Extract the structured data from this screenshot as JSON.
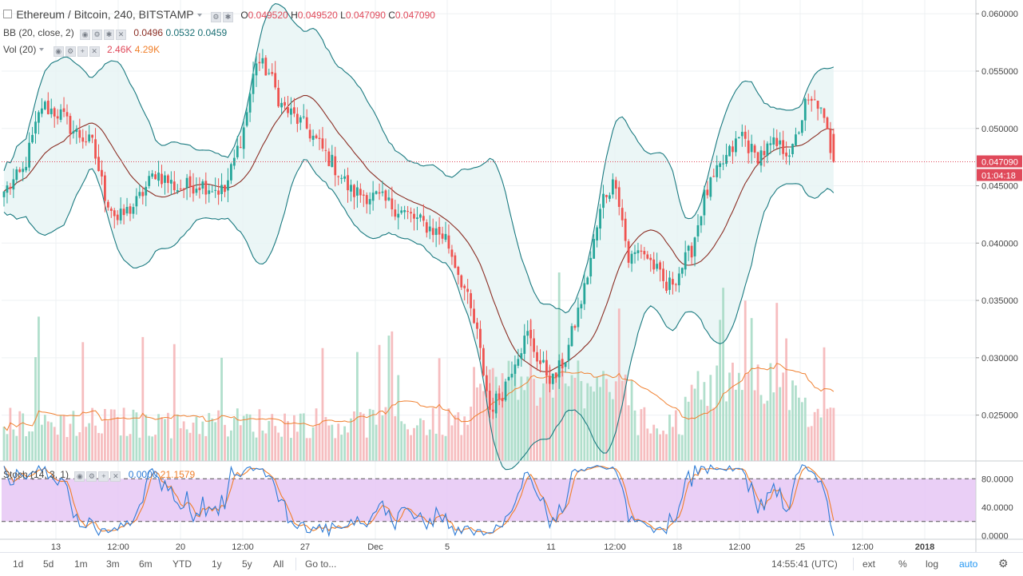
{
  "header": {
    "symbol": "Ethereum / Bitcoin, 240, BITSTAMP",
    "o_label": "O",
    "o_value": "0.049520",
    "h_label": "H",
    "h_value": "0.049520",
    "l_label": "L",
    "l_value": "0.047090",
    "c_label": "C",
    "c_value": "0.047090"
  },
  "bb": {
    "label": "BB (20, close, 2)",
    "basis": "0.0496",
    "upper": "0.0532",
    "lower": "0.0459"
  },
  "vol": {
    "label": "Vol (20)",
    "value": "2.46K",
    "ma": "4.29K"
  },
  "stoch": {
    "label": "Stoch (14, 3, 1)",
    "k": "0.0000",
    "d": "21.1579"
  },
  "price_axis": {
    "ticks": [
      "0.060000",
      "0.055000",
      "0.050000",
      "0.045000",
      "0.040000",
      "0.035000",
      "0.030000",
      "0.025000"
    ],
    "last_price": "0.047090",
    "countdown": "01:04:18"
  },
  "stoch_axis": {
    "ticks": [
      "80.0000",
      "40.0000",
      "0.0000"
    ]
  },
  "time_axis": {
    "labels": [
      "13",
      "12:00",
      "20",
      "12:00",
      "27",
      "Dec",
      "5",
      "11",
      "12:00",
      "18",
      "12:00",
      "25",
      "12:00",
      "2018"
    ]
  },
  "toolbar": {
    "ranges": [
      "1d",
      "5d",
      "1m",
      "3m",
      "6m",
      "YTD",
      "1y",
      "5y",
      "All"
    ],
    "goto": "Go to...",
    "clock": "14:55:41 (UTC)",
    "ext": "ext",
    "pct": "%",
    "log": "log",
    "auto": "auto"
  },
  "colors": {
    "up": "#26a69a",
    "down": "#ef5350",
    "bb_band": "#1a7a80",
    "bb_basis": "#8b2e24",
    "bb_fill": "#e6f4f4",
    "vol_ma": "#f08030",
    "stoch_k": "#2d7bd6",
    "stoch_d": "#f07f2a",
    "stoch_band": "#e6c7f5",
    "price_line": "#e0495a"
  },
  "chart_data": {
    "type": "candlestick",
    "title": "Ethereum / Bitcoin, 240, BITSTAMP",
    "ylim": [
      0.021,
      0.0612
    ],
    "stoch_ylim": [
      -5,
      105
    ],
    "stoch_levels": [
      80,
      20
    ],
    "anchors": [
      {
        "i": 0,
        "p": 0.0445
      },
      {
        "i": 6,
        "p": 0.0462
      },
      {
        "i": 12,
        "p": 0.052
      },
      {
        "i": 18,
        "p": 0.0512
      },
      {
        "i": 22,
        "p": 0.0498
      },
      {
        "i": 28,
        "p": 0.0486
      },
      {
        "i": 32,
        "p": 0.0442
      },
      {
        "i": 36,
        "p": 0.042
      },
      {
        "i": 42,
        "p": 0.0435
      },
      {
        "i": 48,
        "p": 0.0462
      },
      {
        "i": 55,
        "p": 0.0448
      },
      {
        "i": 62,
        "p": 0.0452
      },
      {
        "i": 70,
        "p": 0.0445
      },
      {
        "i": 76,
        "p": 0.05
      },
      {
        "i": 80,
        "p": 0.056
      },
      {
        "i": 84,
        "p": 0.0548
      },
      {
        "i": 88,
        "p": 0.052
      },
      {
        "i": 96,
        "p": 0.05
      },
      {
        "i": 104,
        "p": 0.047
      },
      {
        "i": 110,
        "p": 0.0445
      },
      {
        "i": 118,
        "p": 0.044
      },
      {
        "i": 126,
        "p": 0.0428
      },
      {
        "i": 134,
        "p": 0.0415
      },
      {
        "i": 140,
        "p": 0.0405
      },
      {
        "i": 146,
        "p": 0.036
      },
      {
        "i": 150,
        "p": 0.032
      },
      {
        "i": 154,
        "p": 0.0255
      },
      {
        "i": 158,
        "p": 0.027
      },
      {
        "i": 162,
        "p": 0.03
      },
      {
        "i": 166,
        "p": 0.032
      },
      {
        "i": 170,
        "p": 0.0295
      },
      {
        "i": 174,
        "p": 0.028
      },
      {
        "i": 178,
        "p": 0.03
      },
      {
        "i": 184,
        "p": 0.036
      },
      {
        "i": 190,
        "p": 0.044
      },
      {
        "i": 194,
        "p": 0.0455
      },
      {
        "i": 198,
        "p": 0.0385
      },
      {
        "i": 202,
        "p": 0.0395
      },
      {
        "i": 206,
        "p": 0.038
      },
      {
        "i": 210,
        "p": 0.036
      },
      {
        "i": 214,
        "p": 0.0375
      },
      {
        "i": 218,
        "p": 0.0395
      },
      {
        "i": 222,
        "p": 0.044
      },
      {
        "i": 228,
        "p": 0.047
      },
      {
        "i": 234,
        "p": 0.0495
      },
      {
        "i": 238,
        "p": 0.0475
      },
      {
        "i": 244,
        "p": 0.0485
      },
      {
        "i": 250,
        "p": 0.048
      },
      {
        "i": 254,
        "p": 0.052
      },
      {
        "i": 258,
        "p": 0.0522
      },
      {
        "i": 261,
        "p": 0.0495
      },
      {
        "i": 263,
        "p": 0.04709
      }
    ]
  }
}
